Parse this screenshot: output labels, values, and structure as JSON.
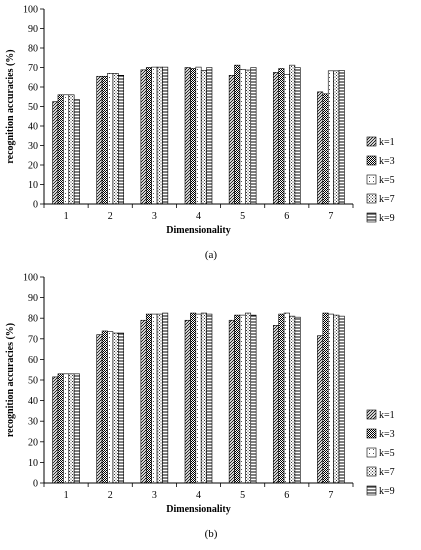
{
  "chart_data": [
    {
      "type": "bar",
      "panel_label": "(a)",
      "categories": [
        "1",
        "2",
        "3",
        "4",
        "5",
        "6",
        "7"
      ],
      "xlabel": "Dimensionality",
      "ylabel": "recognition accuracies (%)",
      "ylim": [
        0,
        100
      ],
      "yticks": [
        0,
        10,
        20,
        30,
        40,
        50,
        60,
        70,
        80,
        90,
        100
      ],
      "grid": false,
      "legend_position": "right",
      "series": [
        {
          "name": "k=1",
          "pattern": "diagonal",
          "values": [
            52.5,
            65.5,
            68.8,
            70.0,
            66.0,
            67.5,
            57.5
          ]
        },
        {
          "name": "k=3",
          "pattern": "checker",
          "values": [
            56.0,
            65.5,
            70.0,
            69.5,
            71.2,
            69.5,
            56.5
          ]
        },
        {
          "name": "k=5",
          "pattern": "dots",
          "values": [
            56.0,
            67.0,
            70.2,
            70.2,
            69.0,
            66.5,
            68.3
          ]
        },
        {
          "name": "k=7",
          "pattern": "dots-dense",
          "values": [
            56.0,
            67.0,
            70.2,
            68.5,
            68.7,
            71.2,
            68.3
          ]
        },
        {
          "name": "k=9",
          "pattern": "horizontal",
          "values": [
            53.5,
            66.0,
            70.2,
            70.0,
            70.0,
            70.0,
            68.5
          ]
        }
      ]
    },
    {
      "type": "bar",
      "panel_label": "(b)",
      "categories": [
        "1",
        "2",
        "3",
        "4",
        "5",
        "6",
        "7"
      ],
      "xlabel": "Dimensionality",
      "ylabel": "recognition accuracies (%)",
      "ylim": [
        0,
        100
      ],
      "yticks": [
        0,
        10,
        20,
        30,
        40,
        50,
        60,
        70,
        80,
        90,
        100
      ],
      "grid": false,
      "legend_position": "right",
      "series": [
        {
          "name": "k=1",
          "pattern": "diagonal",
          "values": [
            51.5,
            72.0,
            79.0,
            79.0,
            79.0,
            76.5,
            71.5
          ]
        },
        {
          "name": "k=3",
          "pattern": "checker",
          "values": [
            53.0,
            73.8,
            82.0,
            82.5,
            81.5,
            82.0,
            82.5
          ]
        },
        {
          "name": "k=5",
          "pattern": "dots",
          "values": [
            53.0,
            73.5,
            82.0,
            82.0,
            81.5,
            82.5,
            82.0
          ]
        },
        {
          "name": "k=7",
          "pattern": "dots-dense",
          "values": [
            53.0,
            72.8,
            82.0,
            82.5,
            82.5,
            81.0,
            81.5
          ]
        },
        {
          "name": "k=9",
          "pattern": "horizontal",
          "values": [
            53.0,
            72.8,
            82.5,
            82.0,
            81.5,
            80.5,
            81.0
          ]
        }
      ]
    }
  ]
}
